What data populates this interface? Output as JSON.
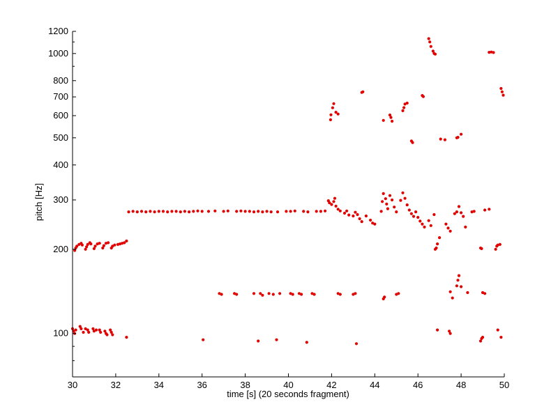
{
  "chart_data": {
    "type": "scatter",
    "title": "",
    "xlabel": "time [s] (20 seconds fragment)",
    "ylabel": "pitch [Hz]",
    "xlim": [
      30,
      50
    ],
    "ylim": [
      70,
      1200
    ],
    "y_scale": "log",
    "grid": false,
    "point_color": "#e00000",
    "xticks": [
      30,
      32,
      34,
      36,
      38,
      40,
      42,
      44,
      46,
      48,
      50
    ],
    "yticks": [
      100,
      200,
      300,
      400,
      500,
      600,
      700,
      800,
      1000,
      1200
    ],
    "series": [
      {
        "points": [
          [
            30.0,
            104
          ],
          [
            30.05,
            102
          ],
          [
            30.1,
            100
          ],
          [
            30.15,
            103
          ],
          [
            30.35,
            106
          ],
          [
            30.4,
            104
          ],
          [
            30.5,
            101
          ],
          [
            30.6,
            104
          ],
          [
            30.7,
            103
          ],
          [
            30.75,
            101
          ],
          [
            30.95,
            104
          ],
          [
            31.0,
            102
          ],
          [
            31.1,
            103
          ],
          [
            31.25,
            103
          ],
          [
            31.3,
            101
          ],
          [
            31.5,
            102
          ],
          [
            31.55,
            100
          ],
          [
            31.6,
            99
          ],
          [
            31.75,
            103
          ],
          [
            31.8,
            101
          ],
          [
            31.85,
            99
          ],
          [
            32.5,
            97
          ],
          [
            36.05,
            95
          ],
          [
            38.6,
            94
          ],
          [
            39.45,
            95
          ],
          [
            40.85,
            93
          ],
          [
            43.15,
            92
          ],
          [
            46.9,
            103
          ],
          [
            47.45,
            102
          ],
          [
            47.5,
            100
          ],
          [
            48.9,
            94
          ],
          [
            48.95,
            96
          ],
          [
            49.0,
            97
          ],
          [
            49.7,
            103
          ],
          [
            49.85,
            97
          ],
          [
            30.1,
            198
          ],
          [
            30.15,
            202
          ],
          [
            30.2,
            205
          ],
          [
            30.3,
            208
          ],
          [
            30.4,
            210
          ],
          [
            30.45,
            207
          ],
          [
            30.6,
            200
          ],
          [
            30.65,
            204
          ],
          [
            30.7,
            208
          ],
          [
            30.8,
            211
          ],
          [
            30.85,
            209
          ],
          [
            31.0,
            201
          ],
          [
            31.05,
            205
          ],
          [
            31.15,
            209
          ],
          [
            31.25,
            210
          ],
          [
            31.4,
            202
          ],
          [
            31.45,
            206
          ],
          [
            31.55,
            210
          ],
          [
            31.65,
            211
          ],
          [
            31.8,
            202
          ],
          [
            31.85,
            205
          ],
          [
            31.95,
            207
          ],
          [
            32.1,
            208
          ],
          [
            32.2,
            209
          ],
          [
            32.3,
            210
          ],
          [
            32.4,
            211
          ],
          [
            32.5,
            214
          ],
          [
            32.6,
            272
          ],
          [
            32.8,
            273
          ],
          [
            33.0,
            272
          ],
          [
            33.2,
            273
          ],
          [
            33.4,
            272
          ],
          [
            33.6,
            273
          ],
          [
            33.8,
            272
          ],
          [
            34.0,
            273
          ],
          [
            34.2,
            273
          ],
          [
            34.4,
            272
          ],
          [
            34.6,
            273
          ],
          [
            34.8,
            273
          ],
          [
            35.0,
            272
          ],
          [
            35.2,
            273
          ],
          [
            35.4,
            272
          ],
          [
            35.6,
            273
          ],
          [
            35.8,
            274
          ],
          [
            36.0,
            273
          ],
          [
            36.3,
            273
          ],
          [
            36.6,
            274
          ],
          [
            37.0,
            273
          ],
          [
            37.2,
            274
          ],
          [
            37.6,
            273
          ],
          [
            37.8,
            274
          ],
          [
            38.0,
            273
          ],
          [
            38.2,
            273
          ],
          [
            38.4,
            272
          ],
          [
            38.6,
            273
          ],
          [
            38.8,
            272
          ],
          [
            39.0,
            273
          ],
          [
            39.2,
            272
          ],
          [
            39.5,
            272
          ],
          [
            39.9,
            273
          ],
          [
            40.1,
            273
          ],
          [
            40.3,
            274
          ],
          [
            40.7,
            273
          ],
          [
            40.9,
            272
          ],
          [
            41.3,
            273
          ],
          [
            41.5,
            273
          ],
          [
            41.7,
            274
          ],
          [
            41.85,
            298
          ],
          [
            41.9,
            293
          ],
          [
            42.0,
            289
          ],
          [
            42.1,
            296
          ],
          [
            42.15,
            304
          ],
          [
            42.2,
            285
          ],
          [
            42.3,
            278
          ],
          [
            42.4,
            274
          ],
          [
            42.6,
            269
          ],
          [
            42.7,
            274
          ],
          [
            42.8,
            265
          ],
          [
            43.0,
            263
          ],
          [
            43.1,
            271
          ],
          [
            43.2,
            266
          ],
          [
            43.3,
            257
          ],
          [
            43.4,
            251
          ],
          [
            43.6,
            263
          ],
          [
            43.8,
            254
          ],
          [
            43.9,
            248
          ],
          [
            44.0,
            246
          ],
          [
            44.3,
            273
          ],
          [
            44.35,
            296
          ],
          [
            44.4,
            316
          ],
          [
            44.5,
            303
          ],
          [
            44.55,
            290
          ],
          [
            44.6,
            279
          ],
          [
            44.7,
            311
          ],
          [
            44.8,
            300
          ],
          [
            44.9,
            283
          ],
          [
            45.0,
            272
          ],
          [
            45.2,
            299
          ],
          [
            45.3,
            318
          ],
          [
            45.4,
            304
          ],
          [
            45.5,
            288
          ],
          [
            45.6,
            276
          ],
          [
            45.7,
            268
          ],
          [
            45.8,
            262
          ],
          [
            45.9,
            272
          ],
          [
            46.0,
            260
          ],
          [
            46.1,
            252
          ],
          [
            46.2,
            246
          ],
          [
            46.3,
            240
          ],
          [
            46.5,
            253
          ],
          [
            46.6,
            243
          ],
          [
            46.75,
            266
          ],
          [
            46.8,
            200
          ],
          [
            46.85,
            202
          ],
          [
            46.9,
            209
          ],
          [
            47.0,
            220
          ],
          [
            47.3,
            246
          ],
          [
            47.4,
            238
          ],
          [
            47.5,
            232
          ],
          [
            47.7,
            268
          ],
          [
            47.8,
            272
          ],
          [
            47.9,
            284
          ],
          [
            48.0,
            270
          ],
          [
            48.1,
            262
          ],
          [
            48.2,
            240
          ],
          [
            48.5,
            272
          ],
          [
            48.6,
            273
          ],
          [
            48.9,
            202
          ],
          [
            48.95,
            201
          ],
          [
            49.1,
            276
          ],
          [
            49.3,
            278
          ],
          [
            49.6,
            200
          ],
          [
            49.65,
            205
          ],
          [
            49.7,
            207
          ],
          [
            49.8,
            208
          ],
          [
            36.8,
            139
          ],
          [
            36.9,
            138
          ],
          [
            37.5,
            139
          ],
          [
            37.6,
            138
          ],
          [
            38.4,
            139
          ],
          [
            38.7,
            139
          ],
          [
            38.8,
            137
          ],
          [
            39.1,
            139
          ],
          [
            39.3,
            138
          ],
          [
            39.6,
            139
          ],
          [
            40.1,
            139
          ],
          [
            40.2,
            138
          ],
          [
            40.5,
            139
          ],
          [
            40.6,
            138
          ],
          [
            41.1,
            139
          ],
          [
            41.2,
            138
          ],
          [
            42.3,
            139
          ],
          [
            42.4,
            138
          ],
          [
            43.0,
            138
          ],
          [
            43.1,
            139
          ],
          [
            44.4,
            133
          ],
          [
            44.45,
            135
          ],
          [
            45.0,
            138
          ],
          [
            45.1,
            139
          ],
          [
            47.5,
            141
          ],
          [
            47.6,
            134
          ],
          [
            47.8,
            148
          ],
          [
            47.85,
            155
          ],
          [
            47.9,
            161
          ],
          [
            48.0,
            147
          ],
          [
            48.3,
            140
          ],
          [
            49.0,
            140
          ],
          [
            49.1,
            139
          ],
          [
            41.95,
            580
          ],
          [
            41.97,
            604
          ],
          [
            42.05,
            640
          ],
          [
            42.1,
            662
          ],
          [
            42.2,
            617
          ],
          [
            42.3,
            608
          ],
          [
            43.4,
            726
          ],
          [
            43.45,
            730
          ],
          [
            44.4,
            577
          ],
          [
            44.7,
            603
          ],
          [
            44.75,
            591
          ],
          [
            44.8,
            573
          ],
          [
            45.3,
            625
          ],
          [
            45.35,
            641
          ],
          [
            45.4,
            660
          ],
          [
            45.5,
            665
          ],
          [
            45.7,
            487
          ],
          [
            45.75,
            481
          ],
          [
            46.2,
            708
          ],
          [
            46.25,
            702
          ],
          [
            47.05,
            495
          ],
          [
            47.25,
            492
          ],
          [
            47.8,
            500
          ],
          [
            47.85,
            502
          ],
          [
            48.0,
            515
          ],
          [
            46.5,
            1130
          ],
          [
            46.55,
            1100
          ],
          [
            46.6,
            1060
          ],
          [
            46.7,
            1020
          ],
          [
            46.75,
            1000
          ],
          [
            46.8,
            995
          ],
          [
            49.3,
            1010
          ],
          [
            49.4,
            1012
          ],
          [
            49.5,
            1008
          ],
          [
            49.85,
            750
          ],
          [
            49.9,
            730
          ],
          [
            49.95,
            710
          ]
        ]
      }
    ]
  }
}
